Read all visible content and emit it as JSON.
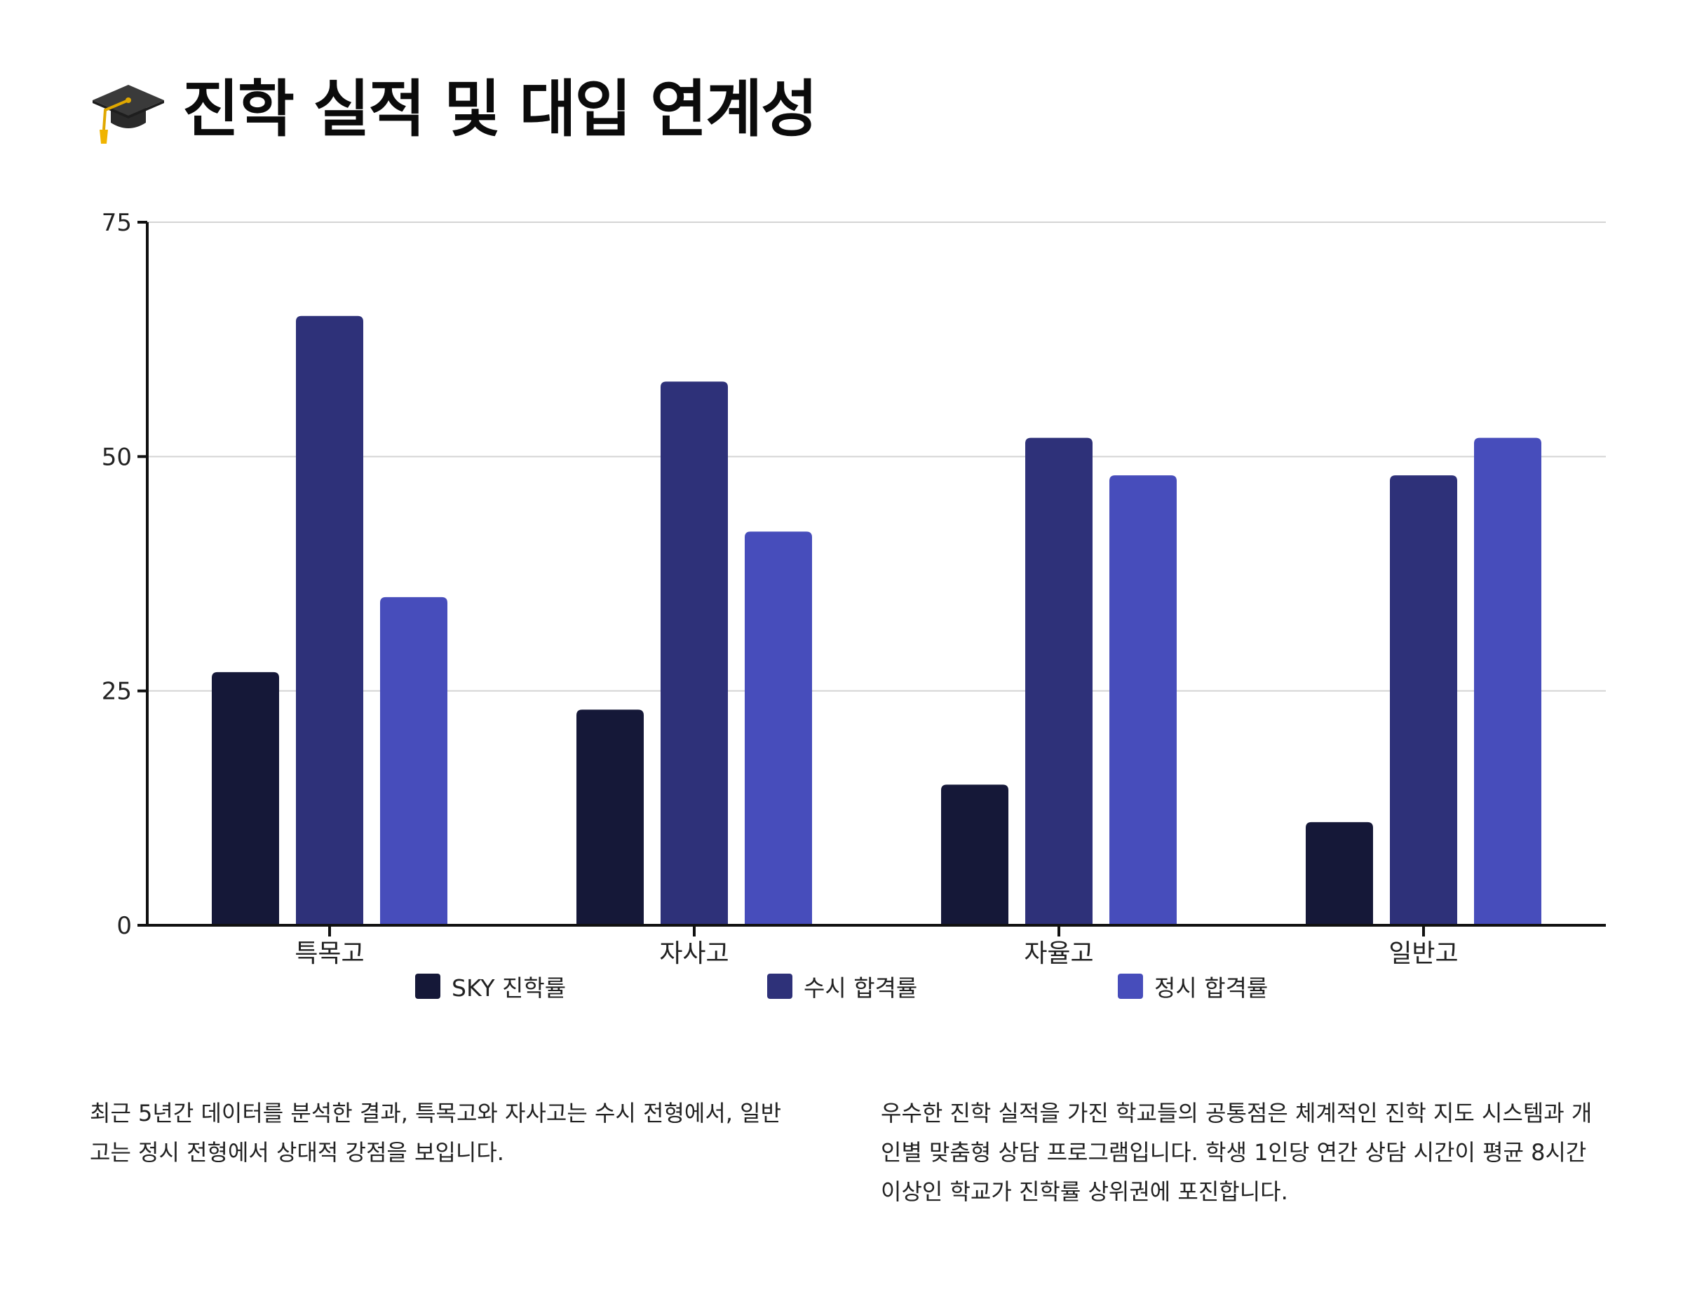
{
  "header": {
    "icon": "graduation-cap-icon",
    "title": "진학 실적 및 대입 연계성"
  },
  "chart_data": {
    "type": "bar",
    "categories": [
      "특목고",
      "자사고",
      "자율고",
      "일반고"
    ],
    "series": [
      {
        "name": "SKY 진학률",
        "values": [
          27,
          23,
          15,
          11
        ],
        "color": "#151838"
      },
      {
        "name": "수시 합격률",
        "values": [
          65,
          58,
          52,
          48
        ],
        "color": "#2e3179"
      },
      {
        "name": "정시 합격률",
        "values": [
          35,
          42,
          48,
          52
        ],
        "color": "#474dbb"
      }
    ],
    "ylim": [
      0,
      75
    ],
    "yticks": [
      "0",
      "25",
      "50",
      "75"
    ],
    "grid": true,
    "legend_position": "bottom",
    "title": "",
    "xlabel": "",
    "ylabel": ""
  },
  "notes": {
    "left": "최근 5년간 데이터를 분석한 결과, 특목고와 자사고는 수시 전형에서, 일반고는 정시 전형에서 상대적 강점을 보입니다.",
    "right": "우수한 진학 실적을 가진 학교들의 공통점은 체계적인 진학 지도 시스템과 개인별 맞춤형 상담 프로그램입니다. 학생 1인당 연간 상담 시간이 평균 8시간 이상인 학교가 진학률 상위권에 포진합니다."
  }
}
